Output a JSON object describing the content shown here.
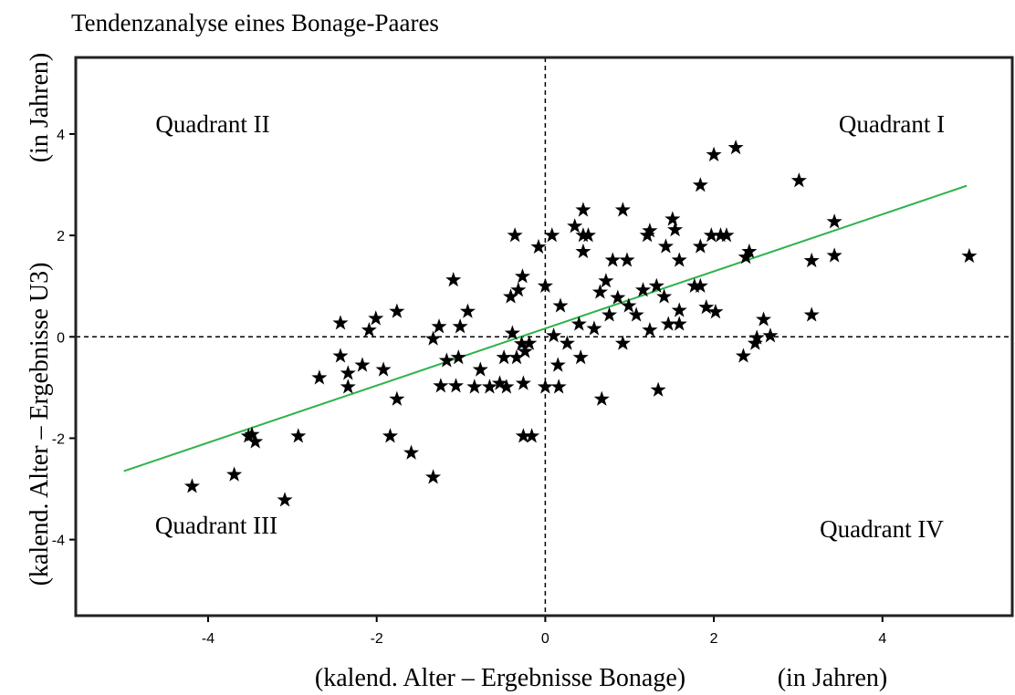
{
  "chart_data": {
    "type": "scatter",
    "title": "Tendenzanalyse eines Bonage-Paares",
    "x_label": "(kalend. Alter – Ergebnisse Bonage)",
    "x_unit": "(in Jahren)",
    "y_label": "(kalend. Alter – Ergebnisse U3)",
    "y_unit": "(in Jahren)",
    "annotations": [
      "Quadrant I",
      "Quadrant II",
      "Quadrant III",
      "Quadrant IV"
    ],
    "xlim": [
      -5.57,
      5.54
    ],
    "ylim": [
      -5.5,
      5.51
    ],
    "xticks": [
      -4,
      -2,
      0,
      2,
      4
    ],
    "yticks": [
      -4,
      -2,
      0,
      2,
      4
    ],
    "zero_lines": true,
    "color": "#000000",
    "trend_line": {
      "x": [
        -5,
        5
      ],
      "y": [
        -2.65,
        2.98
      ],
      "color": "#2db34a"
    },
    "x": [
      -4.19,
      -3.69,
      -3.48,
      -3.44,
      -3.52,
      -3.09,
      -2.93,
      -2.68,
      -2.43,
      -2.43,
      -2.34,
      -2.34,
      -2.17,
      -2.09,
      -2.01,
      -1.92,
      -1.84,
      -1.76,
      -1.76,
      -1.59,
      -1.33,
      -1.33,
      -1.26,
      -1.24,
      -1.17,
      -1.09,
      -1.06,
      -1.03,
      -1.01,
      -0.92,
      -0.84,
      -0.77,
      -0.66,
      -0.54,
      -0.49,
      -0.46,
      -0.41,
      -0.39,
      -0.36,
      -0.34,
      -0.32,
      -0.28,
      -0.27,
      -0.26,
      -0.26,
      -0.24,
      -0.19,
      -0.16,
      -0.08,
      0,
      0,
      0.08,
      0.1,
      0.15,
      0.18,
      0.16,
      0.26,
      0.35,
      0.4,
      0.42,
      0.45,
      0.45,
      0.45,
      0.51,
      0.58,
      0.65,
      0.67,
      0.72,
      0.76,
      0.8,
      0.86,
      0.92,
      0.92,
      0.97,
      0.99,
      1.08,
      1.16,
      1.21,
      1.24,
      1.24,
      1.32,
      1.34,
      1.41,
      1.43,
      1.46,
      1.51,
      1.54,
      1.59,
      1.59,
      1.59,
      1.77,
      1.84,
      1.84,
      1.84,
      1.91,
      1.97,
      2.0,
      2.02,
      2.08,
      2.15,
      2.26,
      2.35,
      2.38,
      2.42,
      2.49,
      2.51,
      2.59,
      2.67,
      3.01,
      3.16,
      3.16,
      3.43,
      3.43,
      5.03
    ],
    "y": [
      -2.95,
      -2.72,
      -1.93,
      -2.07,
      -1.96,
      -3.22,
      -1.96,
      -0.81,
      0.27,
      -0.38,
      -0.72,
      -0.99,
      -0.56,
      0.13,
      0.36,
      -0.65,
      -1.96,
      0.5,
      -1.23,
      -2.29,
      -2.77,
      -0.04,
      0.2,
      -0.97,
      -0.47,
      1.12,
      -0.97,
      -0.41,
      0.2,
      0.5,
      -0.99,
      -0.65,
      -0.99,
      -0.92,
      -0.41,
      -0.99,
      0.79,
      0.07,
      2.0,
      -0.41,
      0.92,
      -0.14,
      1.19,
      -0.92,
      -1.96,
      -0.29,
      -0.13,
      -1.96,
      1.77,
      -0.99,
      1.0,
      2.0,
      0.02,
      -0.56,
      0.61,
      -0.99,
      -0.13,
      2.18,
      0.25,
      -0.41,
      2.5,
      1.68,
      2.0,
      2.0,
      0.16,
      0.88,
      -1.23,
      1.1,
      0.43,
      1.51,
      0.77,
      2.5,
      -0.13,
      1.51,
      0.61,
      0.43,
      0.92,
      2.0,
      2.09,
      0.13,
      1.0,
      -1.05,
      0.79,
      1.78,
      0.25,
      2.32,
      2.11,
      1.51,
      0.52,
      0.25,
      1.0,
      1.78,
      1.0,
      2.99,
      0.58,
      2.0,
      3.59,
      0.49,
      2.0,
      2.0,
      3.73,
      -0.38,
      1.57,
      1.68,
      -0.13,
      -0.02,
      0.34,
      0.02,
      3.08,
      1.5,
      0.43,
      2.27,
      1.6,
      1.59
    ]
  }
}
